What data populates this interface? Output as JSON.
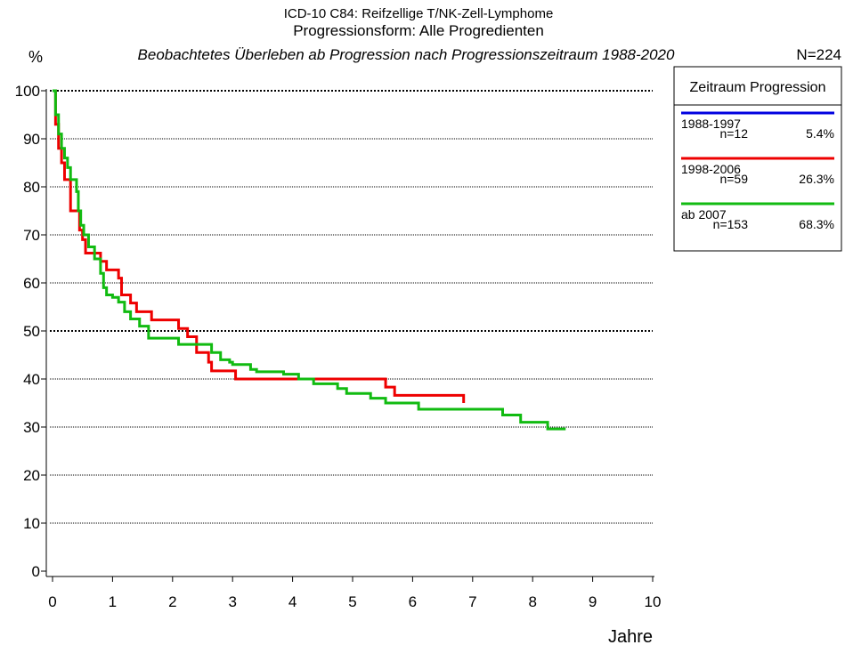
{
  "chart_data": {
    "type": "step",
    "title": "ICD-10 C84: Reifzellige T/NK-Zell-Lymphome",
    "subtitle": "Progressionsform: Alle Progredienten",
    "caption": "Beobachtetes Überleben ab Progression nach Progressionszeitraum 1988-2020",
    "total": "N=224",
    "y_label": "%",
    "x_label": "Jahre",
    "legend_title": "Zeitraum Progression",
    "xlim": [
      0,
      10
    ],
    "xticks": [
      0,
      1,
      2,
      3,
      4,
      5,
      6,
      7,
      8,
      9,
      10
    ],
    "ylim": [
      0,
      100
    ],
    "yticks": [
      0,
      10,
      20,
      30,
      40,
      50,
      60,
      70,
      80,
      90,
      100
    ],
    "grid": true,
    "series": [
      {
        "name": "1988-1997",
        "n_label": "n=12",
        "share": "5.4%",
        "color": "#0000e0",
        "x": [],
        "values": []
      },
      {
        "name": "1998-2006",
        "n_label": "n=59",
        "share": "26.3%",
        "color": "#ee0000",
        "x": [
          0,
          0.05,
          0.1,
          0.15,
          0.2,
          0.3,
          0.45,
          0.5,
          0.55,
          0.8,
          0.9,
          1.1,
          1.15,
          1.3,
          1.4,
          1.65,
          2.1,
          2.25,
          2.4,
          2.6,
          2.65,
          3.05,
          5.55,
          5.7,
          6.85
        ],
        "values": [
          100,
          93,
          88,
          85,
          81.5,
          75,
          71,
          69,
          66.2,
          64.5,
          62.7,
          61,
          57.5,
          55.8,
          54,
          52.3,
          50.5,
          48.8,
          45.5,
          43.5,
          41.7,
          40,
          38.3,
          36.6,
          35
        ]
      },
      {
        "name": "ab 2007",
        "n_label": "n=153",
        "share": "68.3%",
        "color": "#11bb11",
        "x": [
          0,
          0.05,
          0.1,
          0.15,
          0.2,
          0.25,
          0.3,
          0.4,
          0.43,
          0.47,
          0.52,
          0.6,
          0.7,
          0.8,
          0.85,
          0.9,
          1.0,
          1.1,
          1.2,
          1.3,
          1.45,
          1.6,
          2.1,
          2.65,
          2.8,
          2.95,
          3.0,
          3.3,
          3.4,
          3.85,
          4.1,
          4.35,
          4.75,
          4.9,
          5.3,
          5.55,
          6.1,
          7.5,
          7.8,
          8.25,
          8.55
        ],
        "values": [
          100,
          95,
          91,
          88,
          86,
          84,
          81.5,
          79,
          75,
          72,
          70,
          67.5,
          65,
          62,
          59,
          57.5,
          57,
          56,
          54,
          52.5,
          51,
          48.5,
          47.2,
          45.5,
          44,
          43.5,
          43,
          42,
          41.5,
          41,
          40,
          39,
          38,
          37,
          36,
          35,
          33.7,
          32.5,
          31,
          29.6,
          29.6
        ]
      }
    ]
  }
}
